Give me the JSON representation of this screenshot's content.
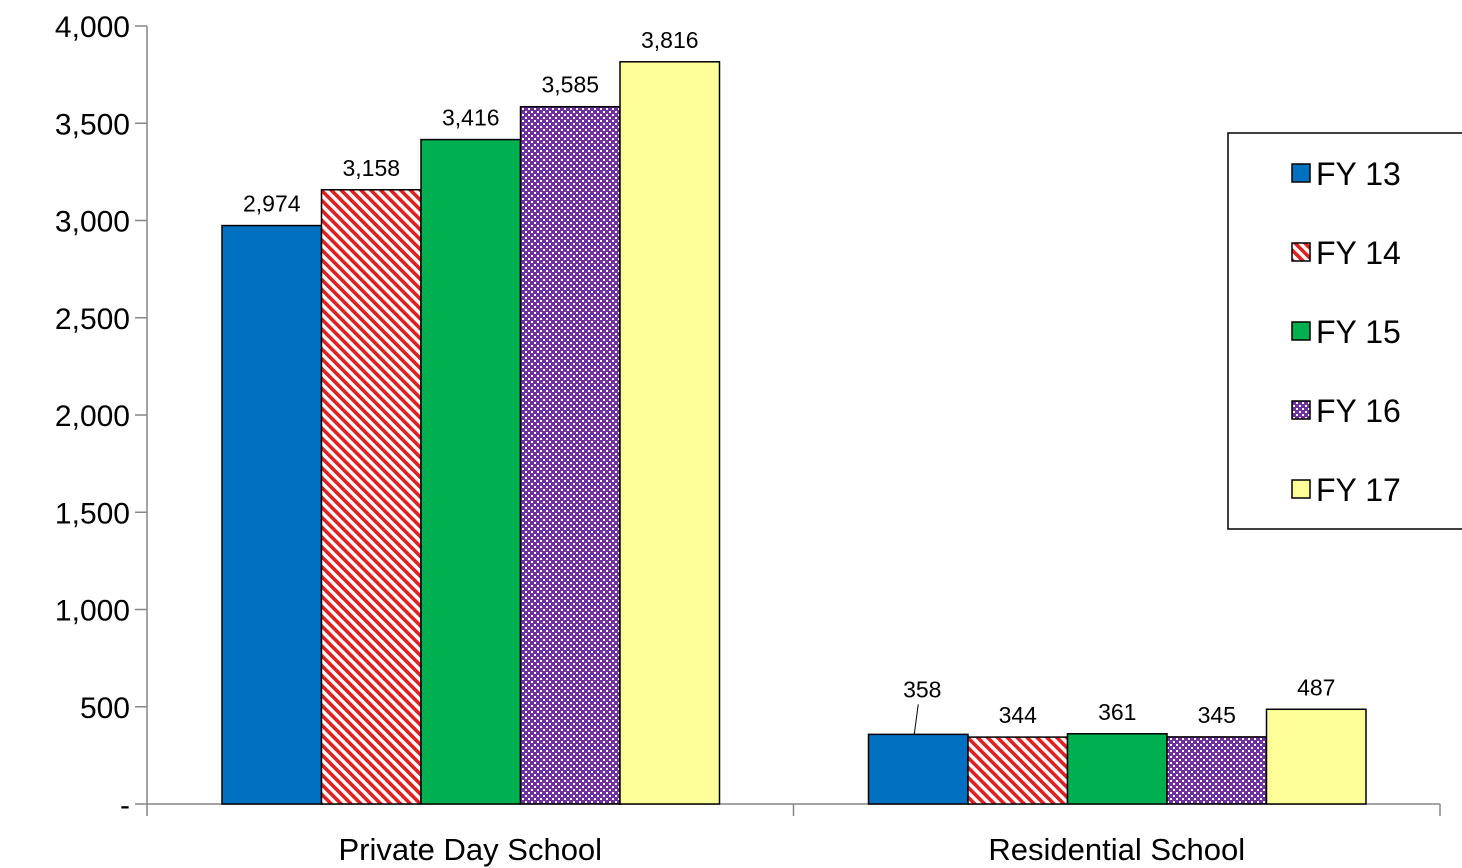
{
  "chart_data": {
    "type": "bar",
    "categories": [
      "Private Day School",
      "Residential School"
    ],
    "series": [
      {
        "name": "FY 13",
        "values": [
          2974,
          358
        ],
        "labels": [
          "2,974",
          "358"
        ],
        "color": "#0070C0",
        "pattern": "solid"
      },
      {
        "name": "FY 14",
        "values": [
          3158,
          344
        ],
        "labels": [
          "3,158",
          "344"
        ],
        "color": "#E02020",
        "pattern": "diagonal-stripes"
      },
      {
        "name": "FY 15",
        "values": [
          3416,
          361
        ],
        "labels": [
          "3,416",
          "361"
        ],
        "color": "#00B050",
        "pattern": "solid"
      },
      {
        "name": "FY 16",
        "values": [
          3585,
          345
        ],
        "labels": [
          "3,585",
          "345"
        ],
        "color": "#7030A0",
        "pattern": "dotted-checker"
      },
      {
        "name": "FY 17",
        "values": [
          3816,
          487
        ],
        "labels": [
          "3,816",
          "487"
        ],
        "color": "#FFFF99",
        "pattern": "solid"
      }
    ],
    "ylim": [
      0,
      4000
    ],
    "yticks": [
      0,
      500,
      1000,
      1500,
      2000,
      2500,
      3000,
      3500,
      4000
    ],
    "ytick_labels": [
      "-",
      "500",
      "1,000",
      "1,500",
      "2,000",
      "2,500",
      "3,000",
      "3,500",
      "4,000"
    ],
    "grid": false,
    "legend_position": "right",
    "title": "",
    "xlabel": "",
    "ylabel": ""
  }
}
